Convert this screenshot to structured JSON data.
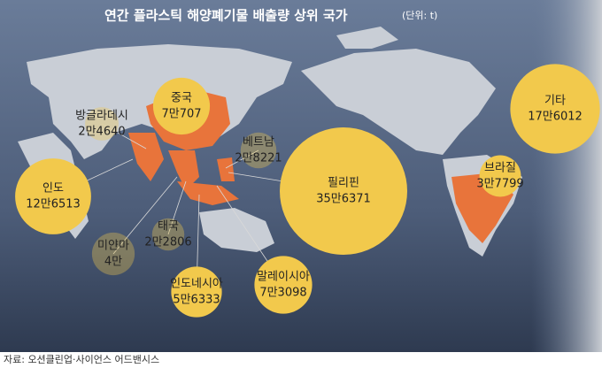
{
  "chart_data": {
    "type": "bubble-map",
    "title": "연간 플라스틱 해양폐기물 배출량 상위 국가",
    "unit": "(단위: t)",
    "source": "자료: 오션클린업·사이언스 어드밴시스",
    "bubble_color": "#f2c94c",
    "highlight_color": "#e8743b",
    "categories": [
      "중국",
      "방글라데시",
      "인도",
      "미얀마",
      "태국",
      "인도네시아",
      "말레이시아",
      "베트남",
      "필리핀",
      "브라질",
      "기타"
    ],
    "values": [
      70707,
      24640,
      126513,
      40000,
      22806,
      56333,
      73098,
      28221,
      356371,
      37799,
      176012
    ],
    "value_labels": [
      "7만707",
      "2만4640",
      "12만6513",
      "4만",
      "2만2806",
      "5만6333",
      "7만3098",
      "2만8221",
      "35만6371",
      "3만7799",
      "17만6012"
    ]
  }
}
